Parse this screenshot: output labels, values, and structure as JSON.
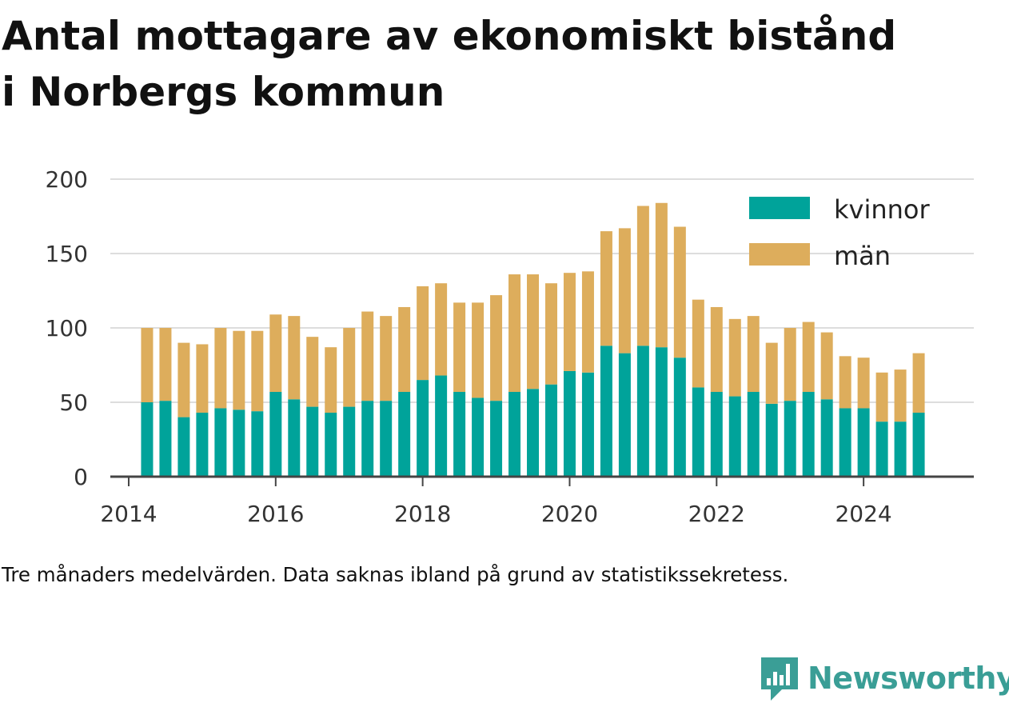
{
  "title_lines": [
    "Antal mottagare av ekonomiskt bistånd",
    "i Norbergs kommun"
  ],
  "caption": "Tre månaders medelvärden. Data saknas ibland på grund av statistikssekretess.",
  "brand": {
    "name": "Newsworthy",
    "icon": "newsworthy-logo-icon",
    "color": "#3a9e96"
  },
  "colors": {
    "kvinnor": "#00a39a",
    "man": "#ddad5c",
    "grid": "#dddddd",
    "axis": "#444444"
  },
  "chart_data": {
    "type": "bar",
    "stacked": true,
    "title": "Antal mottagare av ekonomiskt bistånd i Norbergs kommun",
    "xlabel": "",
    "ylabel": "",
    "ylim": [
      0,
      200
    ],
    "yticks": [
      0,
      50,
      100,
      150,
      200
    ],
    "xticks": [
      "2014",
      "2016",
      "2018",
      "2020",
      "2022",
      "2024"
    ],
    "xrange": [
      2013.75,
      2025.5
    ],
    "grid": true,
    "legend_position": "top-right",
    "x": [
      2014.25,
      2014.5,
      2014.75,
      2015.0,
      2015.25,
      2015.5,
      2015.75,
      2016.0,
      2016.25,
      2016.5,
      2016.75,
      2017.0,
      2017.25,
      2017.5,
      2017.75,
      2018.0,
      2018.25,
      2018.5,
      2018.75,
      2019.0,
      2019.25,
      2019.5,
      2019.75,
      2020.0,
      2020.25,
      2020.5,
      2020.75,
      2021.0,
      2021.25,
      2021.5,
      2021.75,
      2022.0,
      2022.25,
      2022.5,
      2022.75,
      2023.0,
      2023.25,
      2023.5,
      2023.75,
      2024.0,
      2024.25,
      2024.5,
      2024.75
    ],
    "series": [
      {
        "name": "kvinnor",
        "values": [
          50,
          51,
          40,
          43,
          46,
          45,
          44,
          57,
          52,
          47,
          43,
          47,
          51,
          51,
          57,
          65,
          68,
          57,
          53,
          51,
          57,
          59,
          62,
          71,
          70,
          88,
          83,
          88,
          87,
          80,
          60,
          57,
          54,
          57,
          49,
          51,
          57,
          52,
          46,
          46,
          37,
          37,
          43
        ]
      },
      {
        "name": "män",
        "values": [
          50,
          49,
          50,
          46,
          54,
          53,
          54,
          52,
          56,
          47,
          44,
          53,
          60,
          57,
          57,
          63,
          62,
          60,
          64,
          71,
          79,
          77,
          68,
          66,
          68,
          77,
          84,
          94,
          97,
          88,
          59,
          57,
          52,
          51,
          41,
          49,
          47,
          45,
          35,
          34,
          33,
          35,
          40
        ]
      }
    ]
  }
}
